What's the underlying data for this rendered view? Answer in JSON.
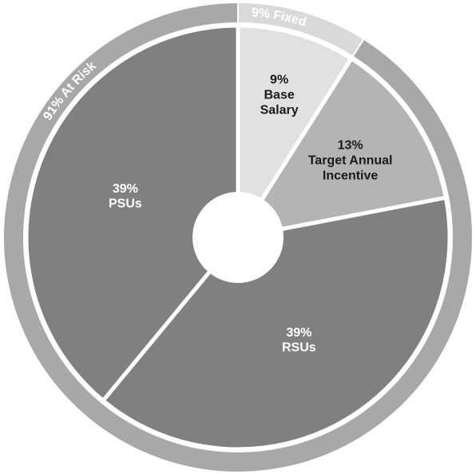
{
  "chart_data": {
    "type": "pie",
    "categories": [
      "Base Salary",
      "Target Annual Incentive",
      "RSUs",
      "PSUs"
    ],
    "values": [
      9,
      13,
      39,
      39
    ],
    "value_labels": [
      "9%",
      "13%",
      "39%",
      "39%"
    ],
    "colors": [
      "#e1e1e1",
      "#b4b4b4",
      "#808081",
      "#808081"
    ],
    "label_colors": [
      "#1a1a1a",
      "#1a1a1a",
      "#ffffff",
      "#ffffff"
    ],
    "outer_ring": {
      "labels": [
        "9% Fixed",
        "91% At Risk"
      ],
      "values": [
        9,
        91
      ],
      "colors": [
        "#d9d9d9",
        "#a8a8a8"
      ]
    }
  }
}
